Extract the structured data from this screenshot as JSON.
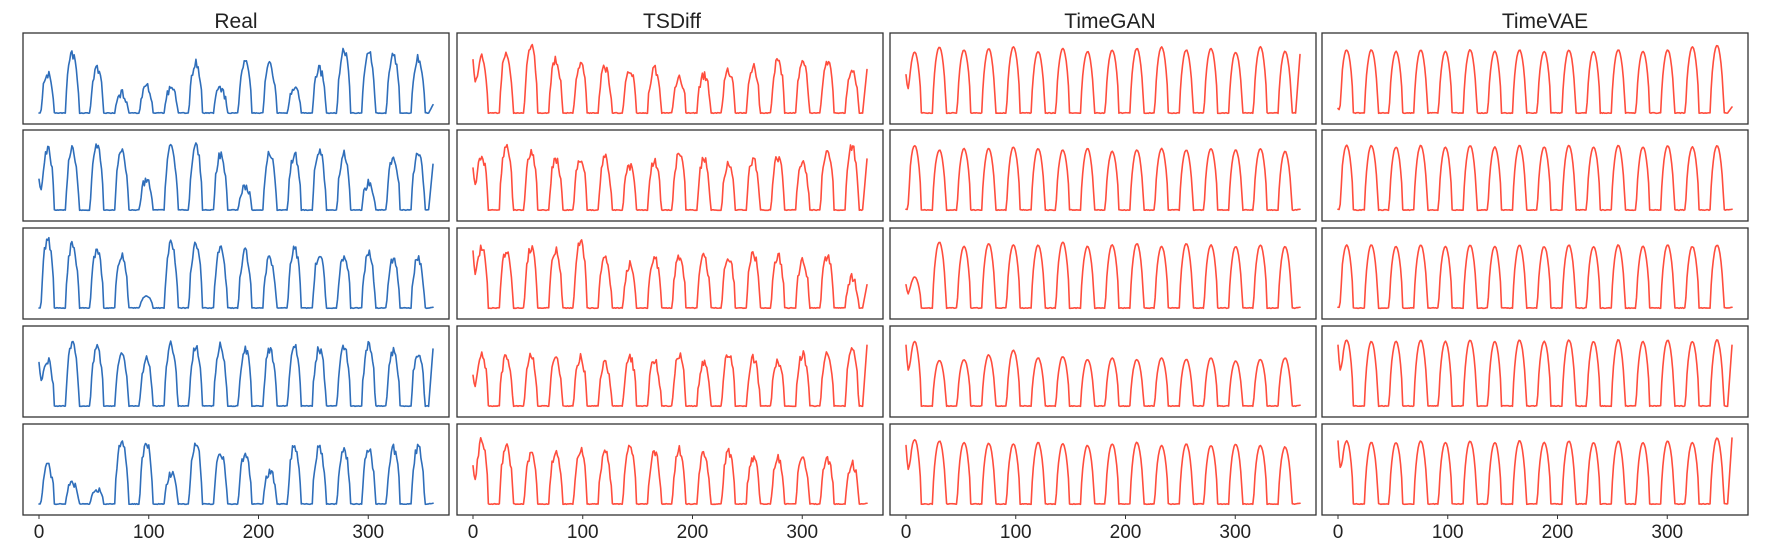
{
  "chart_data": {
    "type": "line",
    "layout": "grid of 5 rows x 4 columns, small multiples",
    "axes": {
      "x_range": [
        0,
        359
      ],
      "x_ticks": [
        0,
        100,
        200,
        300
      ],
      "x_tick_labels": [
        "0",
        "100",
        "200",
        "300"
      ],
      "y_ticks_shown": false,
      "grid": false
    },
    "colors": {
      "real": "#2f6eba",
      "synthetic": "#ff4d3d",
      "frame": "#333333"
    },
    "columns": [
      {
        "title": "Real",
        "color_key": "real",
        "rows": [
          {
            "peaks": [
              0.55,
              0.82,
              0.62,
              0.3,
              0.38,
              0.35,
              0.7,
              0.38,
              0.75,
              0.68,
              0.35,
              0.62,
              0.88,
              0.85,
              0.82,
              0.78
            ],
            "end": 0.15
          },
          {
            "peaks": [
              0.85,
              0.85,
              0.9,
              0.82,
              0.45,
              0.88,
              0.9,
              0.78,
              0.35,
              0.8,
              0.78,
              0.84,
              0.78,
              0.4,
              0.74,
              0.78
            ],
            "start": 0.45,
            "end": 0.65
          },
          {
            "peaks": [
              0.95,
              0.88,
              0.82,
              0.75,
              0.2,
              0.9,
              0.88,
              0.86,
              0.78,
              0.7,
              0.82,
              0.75,
              0.72,
              0.76,
              0.68,
              0.7
            ],
            "end": 0.05
          },
          {
            "peaks": [
              0.65,
              0.85,
              0.82,
              0.72,
              0.65,
              0.85,
              0.82,
              0.84,
              0.8,
              0.78,
              0.82,
              0.8,
              0.82,
              0.86,
              0.78,
              0.75
            ],
            "start": 0.62,
            "end": 0.8
          },
          {
            "peaks": [
              0.55,
              0.3,
              0.25,
              0.88,
              0.85,
              0.45,
              0.85,
              0.72,
              0.7,
              0.48,
              0.82,
              0.8,
              0.74,
              0.76,
              0.78,
              0.8
            ],
            "end": 0.05
          }
        ]
      },
      {
        "title": "TSDiff",
        "color_key": "synthetic",
        "rows": [
          {
            "peaks": [
              0.78,
              0.85,
              0.92,
              0.74,
              0.68,
              0.65,
              0.6,
              0.62,
              0.52,
              0.55,
              0.6,
              0.65,
              0.75,
              0.7,
              0.72,
              0.62
            ],
            "start": 0.75,
            "end": 0.62
          },
          {
            "peaks": [
              0.75,
              0.88,
              0.8,
              0.72,
              0.72,
              0.74,
              0.62,
              0.7,
              0.78,
              0.72,
              0.68,
              0.72,
              0.74,
              0.7,
              0.85,
              0.88
            ],
            "start": 0.6,
            "end": 0.72
          },
          {
            "peaks": [
              0.85,
              0.78,
              0.84,
              0.8,
              0.92,
              0.7,
              0.62,
              0.7,
              0.7,
              0.72,
              0.72,
              0.76,
              0.74,
              0.68,
              0.72,
              0.45
            ],
            "start": 0.8,
            "end": 0.35
          },
          {
            "peaks": [
              0.72,
              0.72,
              0.7,
              0.65,
              0.68,
              0.62,
              0.7,
              0.65,
              0.72,
              0.6,
              0.75,
              0.68,
              0.64,
              0.72,
              0.72,
              0.8
            ],
            "start": 0.45,
            "end": 0.85
          },
          {
            "peaks": [
              0.88,
              0.82,
              0.7,
              0.72,
              0.75,
              0.72,
              0.8,
              0.74,
              0.76,
              0.7,
              0.72,
              0.66,
              0.64,
              0.64,
              0.64,
              0.58
            ],
            "start": 0.55,
            "end": 0.05
          }
        ]
      },
      {
        "title": "TimeGAN",
        "color_key": "synthetic",
        "rows": [
          {
            "peaks": [
              0.85,
              0.92,
              0.88,
              0.9,
              0.92,
              0.86,
              0.9,
              0.86,
              0.88,
              0.9,
              0.92,
              0.88,
              0.9,
              0.85,
              0.92,
              0.86
            ],
            "start": 0.55,
            "end": 0.82
          },
          {
            "peaks": [
              0.9,
              0.84,
              0.86,
              0.86,
              0.88,
              0.86,
              0.84,
              0.86,
              0.82,
              0.84,
              0.86,
              0.84,
              0.86,
              0.84,
              0.86,
              0.82
            ],
            "start": 0.05,
            "end": 0.05
          },
          {
            "peaks": [
              0.45,
              0.92,
              0.86,
              0.9,
              0.88,
              0.88,
              0.92,
              0.86,
              0.88,
              0.9,
              0.86,
              0.9,
              0.88,
              0.86,
              0.88,
              0.86
            ],
            "start": 0.35,
            "end": 0.05
          },
          {
            "peaks": [
              0.9,
              0.65,
              0.66,
              0.72,
              0.78,
              0.68,
              0.7,
              0.66,
              0.68,
              0.66,
              0.68,
              0.66,
              0.68,
              0.64,
              0.66,
              0.68
            ],
            "start": 0.85,
            "end": 0.05
          },
          {
            "peaks": [
              0.9,
              0.88,
              0.86,
              0.85,
              0.84,
              0.86,
              0.84,
              0.82,
              0.84,
              0.86,
              0.82,
              0.84,
              0.82,
              0.84,
              0.82,
              0.8
            ],
            "start": 0.82,
            "end": 0.05
          }
        ]
      },
      {
        "title": "TimeVAE",
        "color_key": "synthetic",
        "rows": [
          {
            "peaks": [
              0.88,
              0.88,
              0.86,
              0.88,
              0.86,
              0.88,
              0.86,
              0.88,
              0.86,
              0.88,
              0.86,
              0.88,
              0.86,
              0.88,
              0.92,
              0.94
            ],
            "start": 0.1,
            "end": 0.12
          },
          {
            "peaks": [
              0.9,
              0.9,
              0.88,
              0.9,
              0.88,
              0.9,
              0.88,
              0.9,
              0.88,
              0.9,
              0.88,
              0.9,
              0.88,
              0.9,
              0.88,
              0.9
            ],
            "start": 0.05,
            "end": 0.05
          },
          {
            "peaks": [
              0.88,
              0.88,
              0.86,
              0.88,
              0.86,
              0.88,
              0.86,
              0.88,
              0.86,
              0.88,
              0.86,
              0.88,
              0.86,
              0.88,
              0.86,
              0.88
            ],
            "start": 0.05,
            "end": 0.05
          },
          {
            "peaks": [
              0.92,
              0.9,
              0.9,
              0.92,
              0.9,
              0.92,
              0.9,
              0.92,
              0.9,
              0.92,
              0.9,
              0.92,
              0.9,
              0.92,
              0.9,
              0.92
            ],
            "start": 0.85,
            "end": 0.85
          },
          {
            "peaks": [
              0.88,
              0.86,
              0.86,
              0.88,
              0.86,
              0.88,
              0.86,
              0.88,
              0.86,
              0.88,
              0.86,
              0.88,
              0.86,
              0.88,
              0.86,
              0.92
            ],
            "start": 0.88,
            "end": 0.92
          }
        ]
      }
    ]
  }
}
